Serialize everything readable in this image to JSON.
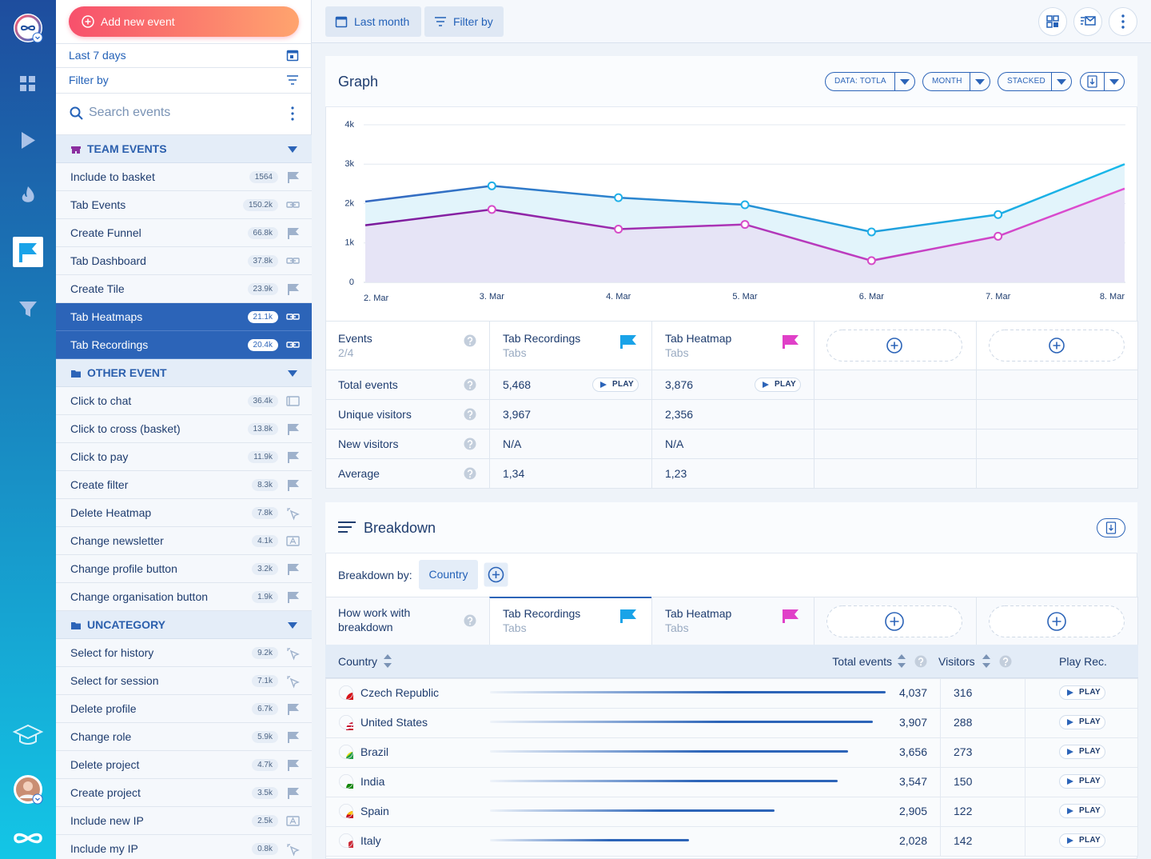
{
  "sidebar": {
    "add_event": "Add new event",
    "date_range": "Last 7 days",
    "filter": "Filter by",
    "search": "Search events",
    "groups": [
      {
        "title": "TEAM EVENTS",
        "items": [
          {
            "label": "Include to basket",
            "count": "1564"
          },
          {
            "label": "Tab Events",
            "count": "150.2k"
          },
          {
            "label": "Create Funnel",
            "count": "66.8k"
          },
          {
            "label": "Tab Dashboard",
            "count": "37.8k"
          },
          {
            "label": "Create Tile",
            "count": "23.9k"
          },
          {
            "label": "Tab Heatmaps",
            "count": "21.1k",
            "selected": true
          },
          {
            "label": "Tab Recordings",
            "count": "20.4k",
            "selected": true
          }
        ]
      },
      {
        "title": "OTHER EVENT",
        "items": [
          {
            "label": "Click to chat",
            "count": "36.4k"
          },
          {
            "label": "Click to cross (basket)",
            "count": "13.8k"
          },
          {
            "label": "Click to pay",
            "count": "11.9k"
          },
          {
            "label": "Create filter",
            "count": "8.3k"
          },
          {
            "label": "Delete Heatmap",
            "count": "7.8k"
          },
          {
            "label": "Change newsletter",
            "count": "4.1k"
          },
          {
            "label": "Change profile button",
            "count": "3.2k"
          },
          {
            "label": "Change organisation button",
            "count": "1.9k"
          }
        ]
      },
      {
        "title": "UNCATEGORY",
        "items": [
          {
            "label": "Select for history",
            "count": "9.2k"
          },
          {
            "label": "Select for session",
            "count": "7.1k"
          },
          {
            "label": "Delete profile",
            "count": "6.7k"
          },
          {
            "label": "Change role",
            "count": "5.9k"
          },
          {
            "label": "Delete project",
            "count": "4.7k"
          },
          {
            "label": "Create project",
            "count": "3.5k"
          },
          {
            "label": "Include new IP",
            "count": "2.5k"
          },
          {
            "label": "Include my IP",
            "count": "0.8k"
          }
        ]
      }
    ]
  },
  "toolbar": {
    "date_range": "Last month",
    "filter": "Filter by"
  },
  "graph": {
    "title": "Graph",
    "controls": [
      "DATA: TOTLA",
      "MONTH",
      "STACKED"
    ]
  },
  "chart_data": {
    "type": "line",
    "categories": [
      "2. Mar",
      "3. Mar",
      "4. Mar",
      "5. Mar",
      "6. Mar",
      "7. Mar",
      "8. Mar"
    ],
    "series": [
      {
        "color": "#17b9ea",
        "values": [
          2050,
          2450,
          2150,
          1970,
          1280,
          1720,
          3000
        ]
      },
      {
        "color": "#e24fd2",
        "values": [
          1450,
          1850,
          1350,
          1470,
          550,
          1170,
          2380
        ]
      }
    ],
    "ylim": [
      0,
      4000
    ],
    "yticks": [
      0,
      {
        "value": 1000,
        "label": "1k"
      },
      {
        "value": 2000,
        "label": "2k"
      },
      {
        "value": 3000,
        "label": "3k"
      },
      {
        "value": 4000,
        "label": "4k"
      }
    ],
    "grid": true
  },
  "events_table": {
    "label": "Events",
    "count": "2/4",
    "events": [
      {
        "name": "Tab Recordings",
        "group": "Tabs",
        "color": "#1aa3e8"
      },
      {
        "name": "Tab Heatmap",
        "group": "Tabs",
        "color": "#e040c8"
      }
    ],
    "rows": [
      {
        "label": "Total events",
        "values": [
          "5,468",
          "3,876"
        ],
        "action": "PLAY"
      },
      {
        "label": "Unique visitors",
        "values": [
          "3,967",
          "2,356"
        ]
      },
      {
        "label": "New visitors",
        "values": [
          "N/A",
          "N/A"
        ]
      },
      {
        "label": "Average",
        "values": [
          "1,34",
          "1,23"
        ]
      }
    ]
  },
  "breakdown": {
    "title": "Breakdown",
    "by_label": "Breakdown by:",
    "by_value": "Country",
    "header_label": "How work with breakdown",
    "events": [
      {
        "name": "Tab Recordings",
        "group": "Tabs",
        "color": "#1aa3e8"
      },
      {
        "name": "Tab Heatmap",
        "group": "Tabs",
        "color": "#e040c8"
      }
    ],
    "columns": {
      "country": "Country",
      "total": "Total events",
      "visitors": "Visitors",
      "play": "Play Rec."
    },
    "action": "PLAY",
    "countries": [
      "Czech Republic",
      "United States",
      "Brazil",
      "India",
      "Spain",
      "Italy"
    ],
    "total_events": {
      "values": [
        4037,
        3907,
        3656,
        3547,
        2905,
        2028
      ],
      "value_labels": [
        "4,037",
        "3,907",
        "3,656",
        "3,547",
        "2,905",
        "2,028"
      ]
    },
    "visitors": [
      316,
      288,
      273,
      150,
      122,
      142
    ]
  }
}
